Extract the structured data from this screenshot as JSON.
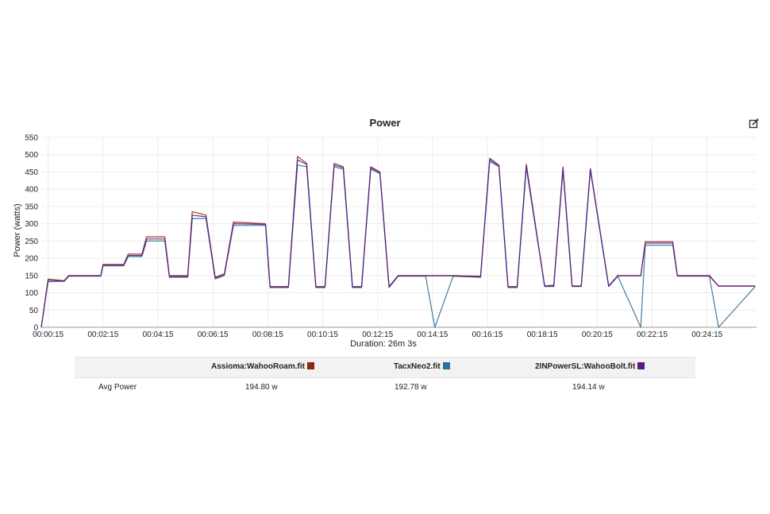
{
  "chart_data": {
    "type": "line",
    "title": "Power",
    "xlabel": "Duration: 26m 3s",
    "ylabel": "Power (watts)",
    "ylim": [
      0,
      550
    ],
    "xlim": [
      "00:00:00",
      "00:26:03"
    ],
    "yticks": [
      "0",
      "50",
      "100",
      "150",
      "200",
      "250",
      "300",
      "350",
      "400",
      "450",
      "500",
      "550"
    ],
    "xticks": [
      "00:00:15",
      "00:02:15",
      "00:04:15",
      "00:06:15",
      "00:08:15",
      "00:10:15",
      "00:12:15",
      "00:14:15",
      "00:16:15",
      "00:18:15",
      "00:20:15",
      "00:22:15",
      "00:24:15"
    ],
    "grid": true,
    "x": [
      "00:00:00",
      "00:00:15",
      "00:00:50",
      "00:01:00",
      "00:02:10",
      "00:02:15",
      "00:03:00",
      "00:03:10",
      "00:03:40",
      "00:03:50",
      "00:04:30",
      "00:04:40",
      "00:05:20",
      "00:05:30",
      "00:06:00",
      "00:06:20",
      "00:06:40",
      "00:07:00",
      "00:08:10",
      "00:08:20",
      "00:09:00",
      "00:09:20",
      "00:09:40",
      "00:10:00",
      "00:10:20",
      "00:10:40",
      "00:11:00",
      "00:11:20",
      "00:11:40",
      "00:12:00",
      "00:12:20",
      "00:12:40",
      "00:13:00",
      "00:14:00",
      "00:14:20",
      "00:15:00",
      "00:16:00",
      "00:16:20",
      "00:16:40",
      "00:17:00",
      "00:17:20",
      "00:17:40",
      "00:18:20",
      "00:18:40",
      "00:19:00",
      "00:19:20",
      "00:19:40",
      "00:20:00",
      "00:20:40",
      "00:21:00",
      "00:21:50",
      "00:22:00",
      "00:23:00",
      "00:23:10",
      "00:24:20",
      "00:24:40",
      "00:26:00"
    ],
    "series": [
      {
        "name": "Assioma:WahooRoam.fit",
        "color": "#8c2a0c",
        "values": [
          0,
          140,
          135,
          150,
          150,
          182,
          182,
          212,
          212,
          262,
          262,
          150,
          150,
          335,
          325,
          145,
          155,
          305,
          300,
          118,
          118,
          495,
          475,
          118,
          118,
          475,
          465,
          118,
          118,
          465,
          450,
          118,
          150,
          150,
          150,
          150,
          148,
          490,
          470,
          118,
          118,
          472,
          120,
          122,
          465,
          120,
          120,
          460,
          120,
          150,
          150,
          248,
          248,
          150,
          150,
          120,
          120
        ]
      },
      {
        "name": "TacxNeo2.fit",
        "color": "#2e6f94",
        "values": [
          0,
          132,
          133,
          148,
          148,
          178,
          178,
          205,
          205,
          250,
          250,
          145,
          145,
          315,
          315,
          140,
          150,
          295,
          295,
          115,
          115,
          470,
          465,
          115,
          115,
          465,
          458,
          115,
          115,
          458,
          445,
          115,
          148,
          148,
          0,
          148,
          145,
          480,
          465,
          115,
          115,
          462,
          118,
          118,
          455,
          118,
          118,
          455,
          118,
          148,
          0,
          238,
          238,
          148,
          148,
          0,
          118
        ]
      },
      {
        "name": "2INPowerSL:WahooBolt.fit",
        "color": "#5a1a8a",
        "values": [
          0,
          136,
          134,
          149,
          149,
          180,
          180,
          208,
          208,
          256,
          256,
          147,
          147,
          325,
          320,
          143,
          152,
          300,
          298,
          117,
          117,
          485,
          472,
          117,
          117,
          470,
          462,
          117,
          117,
          462,
          448,
          117,
          149,
          149,
          149,
          149,
          146,
          485,
          468,
          117,
          117,
          468,
          119,
          120,
          460,
          119,
          119,
          458,
          119,
          149,
          149,
          244,
          244,
          149,
          149,
          119,
          119
        ]
      }
    ],
    "legend_position": "bottom"
  },
  "stats": {
    "row_label": "Avg Power",
    "values": [
      "194.80 w",
      "192.78 w",
      "194.14 w"
    ]
  },
  "icons": {
    "edit": "edit-icon"
  }
}
